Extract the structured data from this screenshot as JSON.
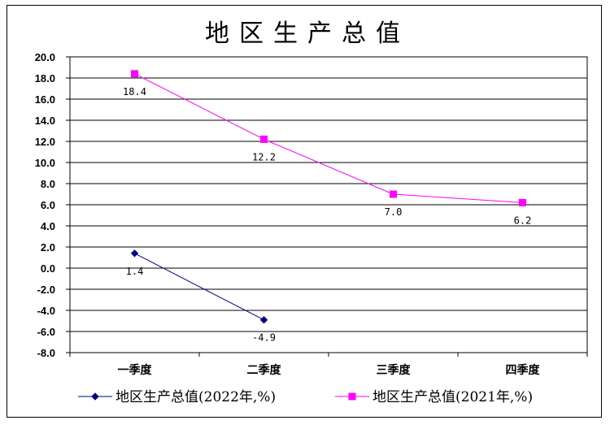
{
  "chart_data": {
    "type": "line",
    "title": "地区生产总值",
    "categories": [
      "一季度",
      "二季度",
      "三季度",
      "四季度"
    ],
    "ylim": [
      -8.0,
      20.0
    ],
    "ystep": 2.0,
    "y_tick_labels": [
      "20.0",
      "18.0",
      "16.0",
      "14.0",
      "12.0",
      "10.0",
      "8.0",
      "6.0",
      "4.0",
      "2.0",
      "0.0",
      "-2.0",
      "-4.0",
      "-6.0",
      "-8.0"
    ],
    "grid": true,
    "legend_position": "bottom",
    "series": [
      {
        "name": "地区生产总值(2022年,%)",
        "values": [
          1.4,
          -4.9,
          null,
          null
        ],
        "labels": [
          "1.4",
          "-4.9",
          "",
          ""
        ],
        "color": "#000080",
        "marker": "diamond"
      },
      {
        "name": "地区生产总值(2021年,%)",
        "values": [
          18.4,
          12.2,
          7.0,
          6.2
        ],
        "labels": [
          "18.4",
          "12.2",
          "7.0",
          "6.2"
        ],
        "color": "#ff00ff",
        "marker": "square"
      }
    ]
  }
}
